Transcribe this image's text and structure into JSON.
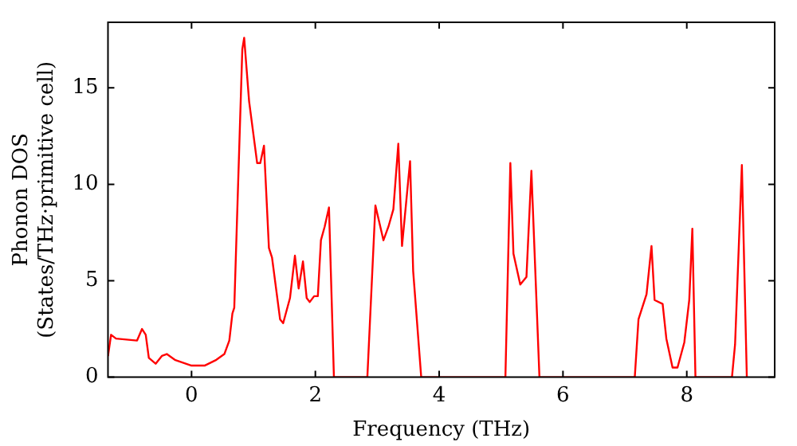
{
  "chart_data": {
    "type": "line",
    "xlabel": "Frequency (THz)",
    "ylabel": "Phonon DOS\n(States/THz·primitive cell)",
    "x": [
      -1.35,
      -1.3,
      -1.22,
      -0.88,
      -0.8,
      -0.74,
      -0.69,
      -0.58,
      -0.48,
      -0.4,
      -0.27,
      0,
      0.21,
      0.4,
      0.53,
      0.61,
      0.66,
      0.69,
      0.82,
      0.85,
      0.93,
      1.06,
      1.11,
      1.17,
      1.25,
      1.3,
      1.43,
      1.48,
      1.59,
      1.67,
      1.73,
      1.8,
      1.86,
      1.91,
      1.98,
      2.04,
      2.09,
      2.15,
      2.22,
      2.3,
      2.84,
      2.97,
      3.1,
      3.18,
      3.26,
      3.34,
      3.4,
      3.53,
      3.58,
      3.71,
      5.07,
      5.15,
      5.2,
      5.31,
      5.41,
      5.49,
      5.62,
      7.16,
      7.22,
      7.35,
      7.43,
      7.48,
      7.61,
      7.67,
      7.77,
      7.85,
      7.96,
      8.04,
      8.09,
      8.14,
      8.73,
      8.78,
      8.89,
      8.97
    ],
    "series": [
      {
        "color": "#ff0000",
        "values": [
          1.1,
          2.2,
          2.0,
          1.9,
          2.5,
          2.2,
          1.0,
          0.7,
          1.1,
          1.2,
          0.9,
          0.6,
          0.6,
          0.9,
          1.2,
          1.9,
          3.3,
          3.6,
          17.0,
          17.6,
          14.3,
          11.1,
          11.1,
          12.0,
          6.7,
          6.2,
          3.0,
          2.8,
          4.1,
          6.3,
          4.6,
          6.0,
          4.1,
          3.9,
          4.2,
          4.2,
          7.1,
          7.8,
          8.8,
          0,
          0,
          8.9,
          7.1,
          7.8,
          8.7,
          12.1,
          6.8,
          11.2,
          5.5,
          0,
          0,
          11.1,
          6.4,
          4.8,
          5.2,
          10.7,
          0,
          0,
          3.0,
          4.3,
          6.8,
          4.0,
          3.8,
          2.0,
          0.5,
          0.5,
          1.8,
          4.0,
          7.7,
          0,
          0,
          1.7,
          11.0,
          0
        ]
      }
    ],
    "xlim": [
      -1.35,
      9.42
    ],
    "ylim": [
      0,
      18.4
    ],
    "xticks": [
      0,
      2,
      4,
      6,
      8
    ],
    "yticks": [
      0,
      5,
      10,
      15
    ],
    "grid": false,
    "legend": false,
    "marker": "none",
    "line_style": "solid"
  }
}
